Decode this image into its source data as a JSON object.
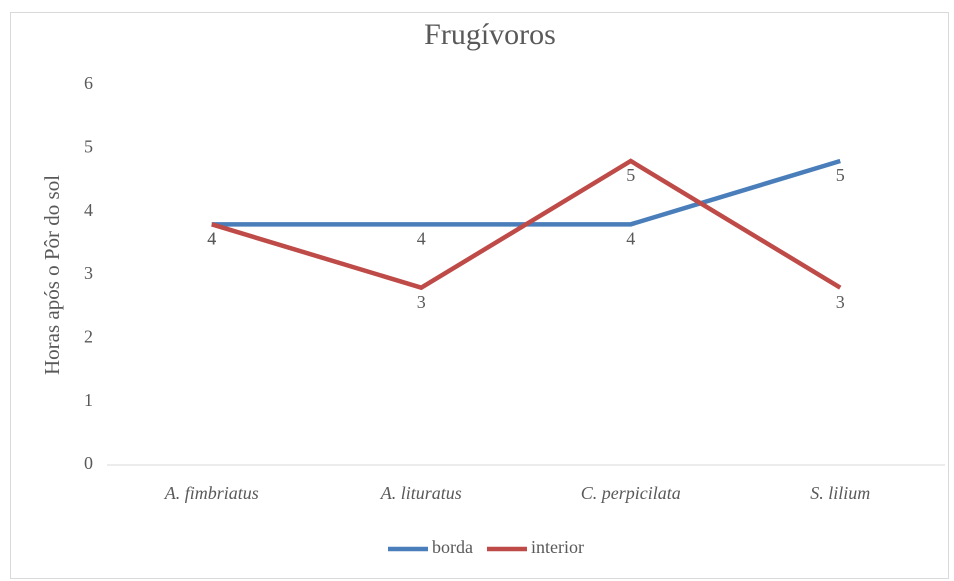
{
  "chart_data": {
    "type": "line",
    "title": "Frugívoros",
    "y_label": "Horas após o Pôr do sol",
    "categories": [
      "A. fimbriatus",
      "A. lituratus",
      "C. perpicilata",
      "S. lilium"
    ],
    "series": [
      {
        "name": "borda",
        "color": "#4a7ebb",
        "values": [
          3.8,
          3.8,
          3.8,
          4.8
        ],
        "value_labels": [
          "4",
          "4",
          "4",
          "5"
        ]
      },
      {
        "name": "interior",
        "color": "#be4b48",
        "values": [
          3.8,
          2.8,
          4.8,
          2.8
        ],
        "value_labels": [
          "4",
          "3",
          "5",
          "3"
        ]
      }
    ],
    "ylim": [
      0,
      6
    ],
    "yticks": [
      0,
      1,
      2,
      3,
      4,
      5,
      6
    ],
    "grid": false,
    "legend": "bottom"
  }
}
